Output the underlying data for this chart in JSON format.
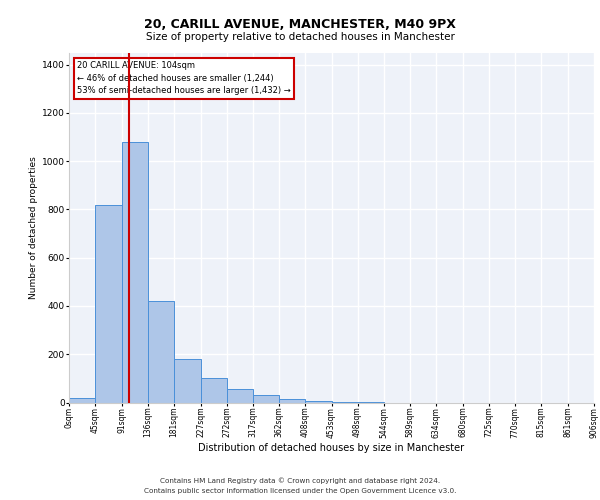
{
  "title_line1": "20, CARILL AVENUE, MANCHESTER, M40 9PX",
  "title_line2": "Size of property relative to detached houses in Manchester",
  "xlabel": "Distribution of detached houses by size in Manchester",
  "ylabel": "Number of detached properties",
  "footer_line1": "Contains HM Land Registry data © Crown copyright and database right 2024.",
  "footer_line2": "Contains public sector information licensed under the Open Government Licence v3.0.",
  "annotation_line1": "20 CARILL AVENUE: 104sqm",
  "annotation_line2": "← 46% of detached houses are smaller (1,244)",
  "annotation_line3": "53% of semi-detached houses are larger (1,432) →",
  "bar_values": [
    20,
    820,
    1080,
    420,
    180,
    100,
    55,
    30,
    15,
    5,
    2,
    1,
    0,
    0,
    0,
    0,
    0,
    0,
    0,
    0
  ],
  "bin_edges": [
    0,
    45,
    91,
    136,
    181,
    227,
    272,
    317,
    362,
    408,
    453,
    498,
    544,
    589,
    634,
    680,
    725,
    770,
    815,
    861,
    906
  ],
  "tick_labels": [
    "0sqm",
    "45sqm",
    "91sqm",
    "136sqm",
    "181sqm",
    "227sqm",
    "272sqm",
    "317sqm",
    "362sqm",
    "408sqm",
    "453sqm",
    "498sqm",
    "544sqm",
    "589sqm",
    "634sqm",
    "680sqm",
    "725sqm",
    "770sqm",
    "815sqm",
    "861sqm",
    "906sqm"
  ],
  "bar_color": "#aec6e8",
  "bar_edge_color": "#4a90d9",
  "vline_x": 104,
  "vline_color": "#cc0000",
  "ylim": [
    0,
    1450
  ],
  "yticks": [
    0,
    200,
    400,
    600,
    800,
    1000,
    1200,
    1400
  ],
  "annotation_box_color": "#cc0000",
  "plot_bg_color": "#eef2f9"
}
